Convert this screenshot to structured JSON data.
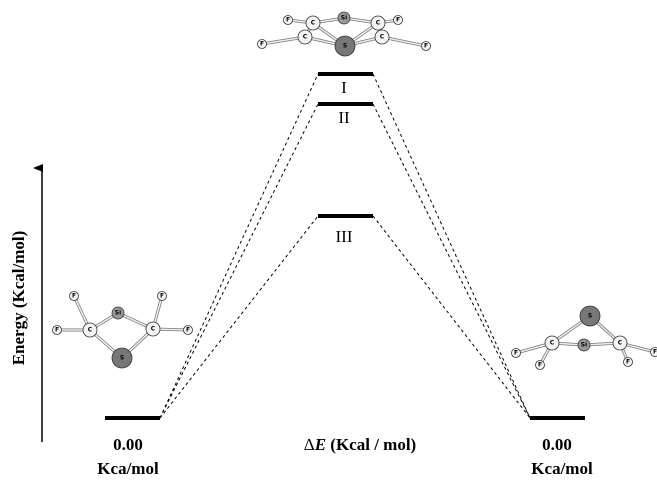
{
  "y_axis": {
    "label": "Energy (Kcal/mol)"
  },
  "x_axis": {
    "delta": "Δ",
    "symbol": "E",
    "unit": " (Kcal / mol)"
  },
  "levels": [
    {
      "label": "I"
    },
    {
      "label": "II"
    },
    {
      "label": "III"
    }
  ],
  "reactant": {
    "energy": "0.00",
    "unit": "Kca/mol"
  },
  "product": {
    "energy": "0.00",
    "unit": "Kca/mol"
  },
  "molecules": {
    "top": {
      "atoms": [
        "F",
        "C",
        "F",
        "C",
        "Si",
        "C",
        "F",
        "C",
        "F",
        "S"
      ]
    },
    "left": {
      "atoms": [
        "F",
        "F",
        "C",
        "Si",
        "C",
        "F",
        "F",
        "S"
      ]
    },
    "right": {
      "atoms": [
        "S",
        "C",
        "Si",
        "C",
        "F",
        "F",
        "F",
        "F"
      ]
    }
  }
}
